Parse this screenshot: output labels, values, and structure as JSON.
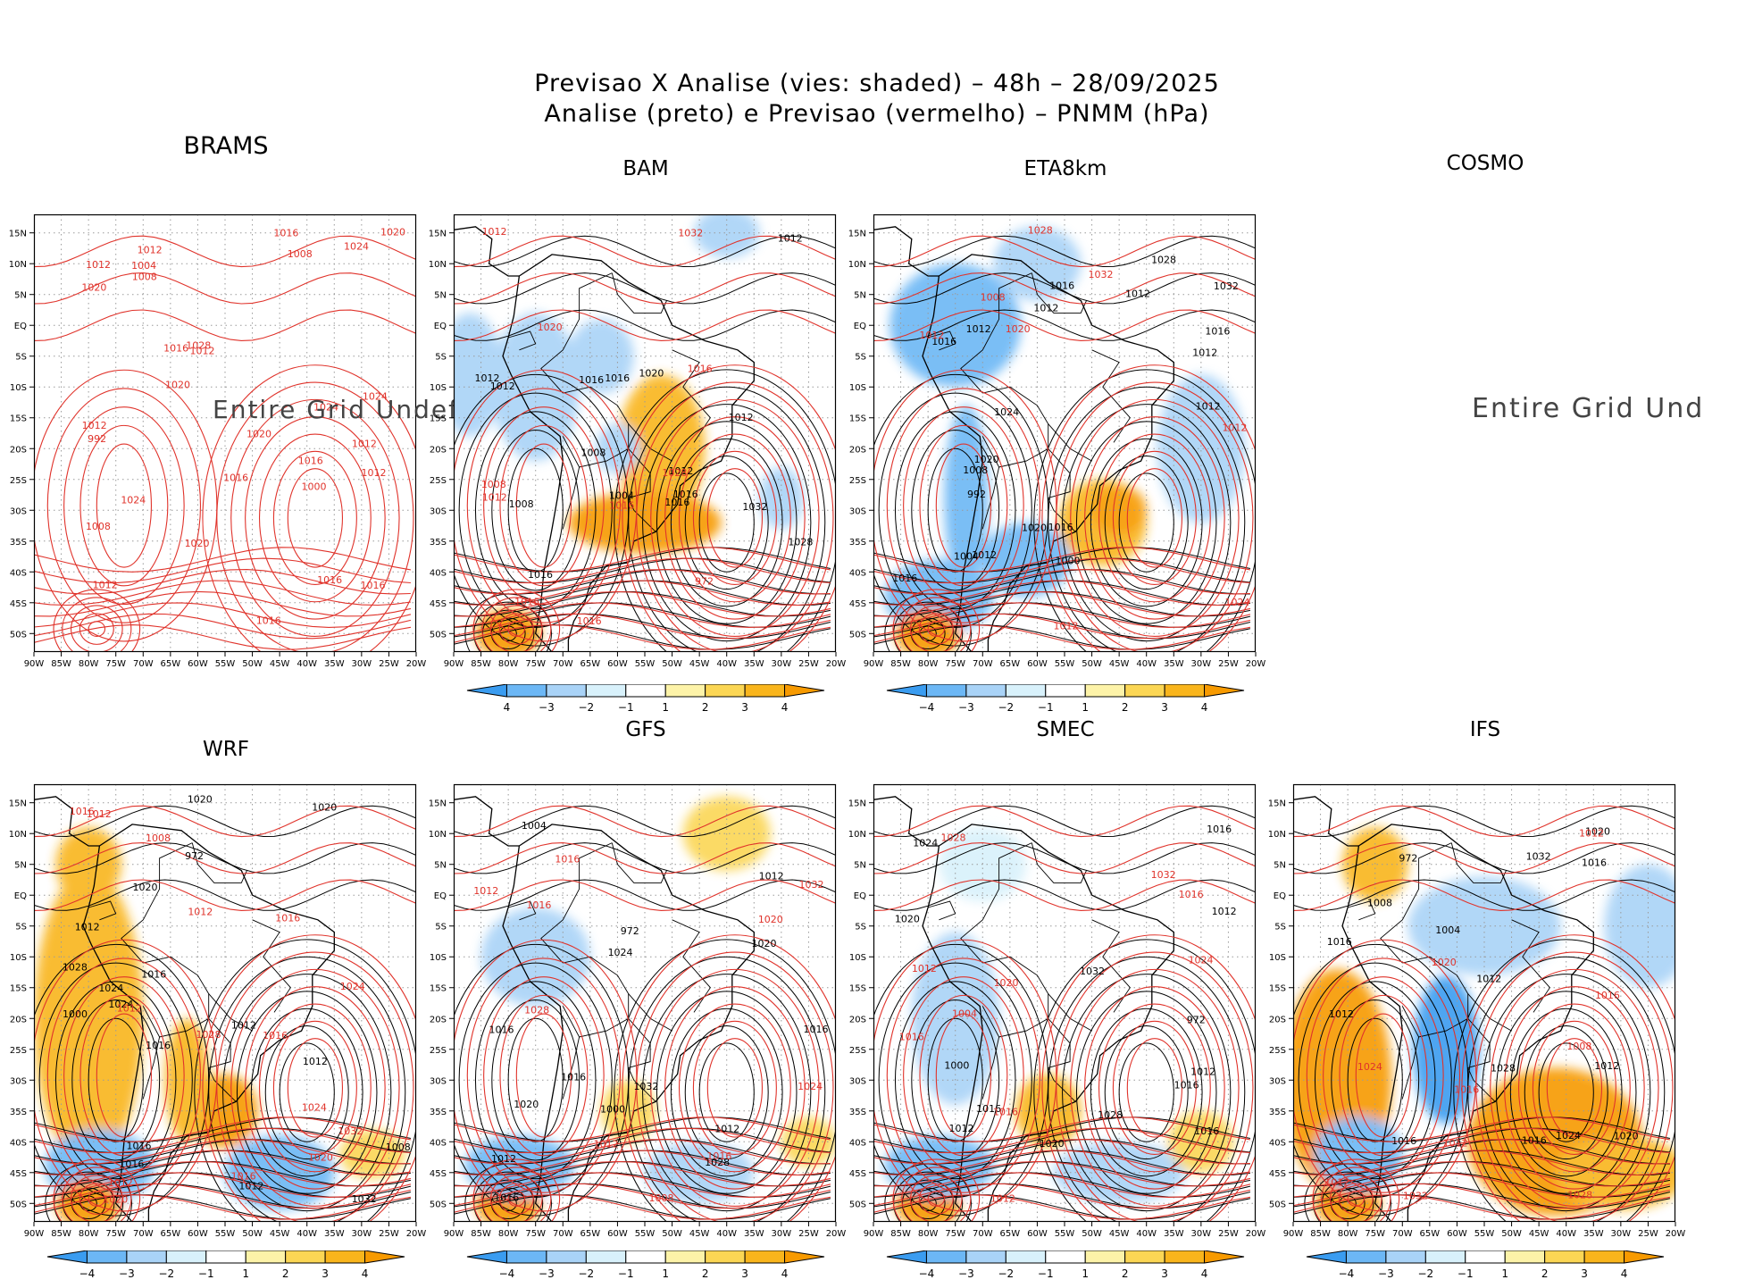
{
  "header": {
    "title_line1": "Previsao X Analise (vies: shaded) – 48h – 28/09/2025",
    "title_line2": "Analise (preto) e Previsao (vermelho) – PNMM (hPa)"
  },
  "grid_undefined_text": [
    "Entire Grid Undef",
    "Entire Grid Und"
  ],
  "chart_data": {
    "type": "heatmap",
    "description_variable": "PNMM (hPa)",
    "forecast_hours": "48h",
    "date": "28/09/2025",
    "lon_ticks": [
      "90W",
      "85W",
      "80W",
      "75W",
      "70W",
      "65W",
      "60W",
      "55W",
      "50W",
      "45W",
      "40W",
      "35W",
      "30W",
      "25W",
      "20W"
    ],
    "lat_ticks": [
      "15N",
      "10N",
      "5N",
      "EQ",
      "5S",
      "10S",
      "15S",
      "20S",
      "25S",
      "30S",
      "35S",
      "40S",
      "45S",
      "50S"
    ],
    "lon_range": [
      -90,
      -20
    ],
    "lat_range": [
      -53,
      18
    ],
    "colorbar_labels": [
      "−4",
      "−3",
      "−2",
      "−1",
      "1",
      "2",
      "3",
      "4"
    ],
    "colorbar_labels_bam": [
      "4",
      "−3",
      "−2",
      "−1",
      "1",
      "2",
      "3",
      "4"
    ],
    "colorbar_colors": [
      "#3a9cf0",
      "#6cb7f5",
      "#a9d3f7",
      "#d8f1fb",
      "#ffffff",
      "#fdf3a8",
      "#fbd654",
      "#f9b51c",
      "#f79a00"
    ],
    "panels": [
      {
        "name": "BRAMS",
        "undefined": true,
        "has_colorbar": false,
        "contour_labels_red": [
          "1016",
          "1012",
          "1012",
          "1012",
          "1012",
          "1016",
          "1008",
          "1008",
          "1016",
          "1016",
          "1020",
          "1012",
          "1012",
          "1016",
          "1020",
          "1024",
          "1016",
          "1020",
          "1028",
          "1024",
          "1020",
          "1024",
          "1020",
          "1012",
          "1016",
          "1004",
          "1000",
          "992",
          "1008",
          "1024"
        ]
      },
      {
        "name": "BAM",
        "undefined": false,
        "has_colorbar": true,
        "contour_labels_black": [
          "1016",
          "1012",
          "1012",
          "1016",
          "1008",
          "1016",
          "1012",
          "1012",
          "1016",
          "1020",
          "1016",
          "1012",
          "1008",
          "1004",
          "1032",
          "1028"
        ],
        "contour_labels_red": [
          "1016",
          "1012",
          "1016",
          "1020",
          "1008",
          "1028",
          "1016",
          "1016",
          "1012",
          "1032",
          "972"
        ]
      },
      {
        "name": "ETA8km",
        "undefined": false,
        "has_colorbar": true,
        "contour_labels_black": [
          "1016",
          "1012",
          "1012",
          "1012",
          "1012",
          "1016",
          "1012",
          "1016",
          "1024",
          "1020",
          "1020",
          "1016",
          "1016",
          "1012",
          "1008",
          "1032",
          "1028",
          "1000",
          "992",
          "1004"
        ],
        "contour_labels_red": [
          "1012",
          "1008",
          "1012",
          "1020",
          "1028",
          "1024",
          "1032",
          "1012"
        ]
      },
      {
        "name": "COSMO",
        "undefined": true,
        "has_colorbar": false
      },
      {
        "name": "WRF",
        "undefined": false,
        "has_colorbar": true,
        "contour_labels_black": [
          "1016",
          "1012",
          "1016",
          "1012",
          "1012",
          "1016",
          "1012",
          "1020",
          "1016",
          "1024",
          "1020",
          "1020",
          "1024",
          "1032",
          "1028",
          "1008",
          "1000",
          "972"
        ],
        "contour_labels_red": [
          "1016",
          "1012",
          "1012",
          "1016",
          "1016",
          "1020",
          "1020",
          "1024",
          "1028",
          "1024",
          "1032",
          "1016",
          "1012",
          "1008",
          "1012"
        ]
      },
      {
        "name": "GFS",
        "undefined": false,
        "has_colorbar": true,
        "contour_labels_black": [
          "1016",
          "1012",
          "1016",
          "1012",
          "1016",
          "1020",
          "1024",
          "1020",
          "1016",
          "1012",
          "1032",
          "1028",
          "1004",
          "1000",
          "972"
        ],
        "contour_labels_red": [
          "1012",
          "1016",
          "1020",
          "1024",
          "1028",
          "1016",
          "1012",
          "1016",
          "1032",
          "1008"
        ]
      },
      {
        "name": "SMEC",
        "undefined": false,
        "has_colorbar": true,
        "contour_labels_black": [
          "1016",
          "1012",
          "1016",
          "1012",
          "1016",
          "1020",
          "1024",
          "1020",
          "1016",
          "1012",
          "1032",
          "1028",
          "1000",
          "972"
        ],
        "contour_labels_red": [
          "1016",
          "1016",
          "1012",
          "1020",
          "1024",
          "1028",
          "1016",
          "1012",
          "1032",
          "1004"
        ]
      },
      {
        "name": "IFS",
        "undefined": false,
        "has_colorbar": true,
        "contour_labels_black": [
          "1016",
          "1012",
          "1016",
          "1012",
          "1020",
          "1016",
          "1024",
          "1020",
          "1016",
          "1012",
          "1032",
          "1028",
          "1008",
          "1004",
          "972"
        ],
        "contour_labels_red": [
          "1012",
          "1016",
          "1008",
          "1012",
          "1024",
          "1020",
          "1028",
          "1016",
          "1012",
          "1032"
        ]
      }
    ]
  }
}
